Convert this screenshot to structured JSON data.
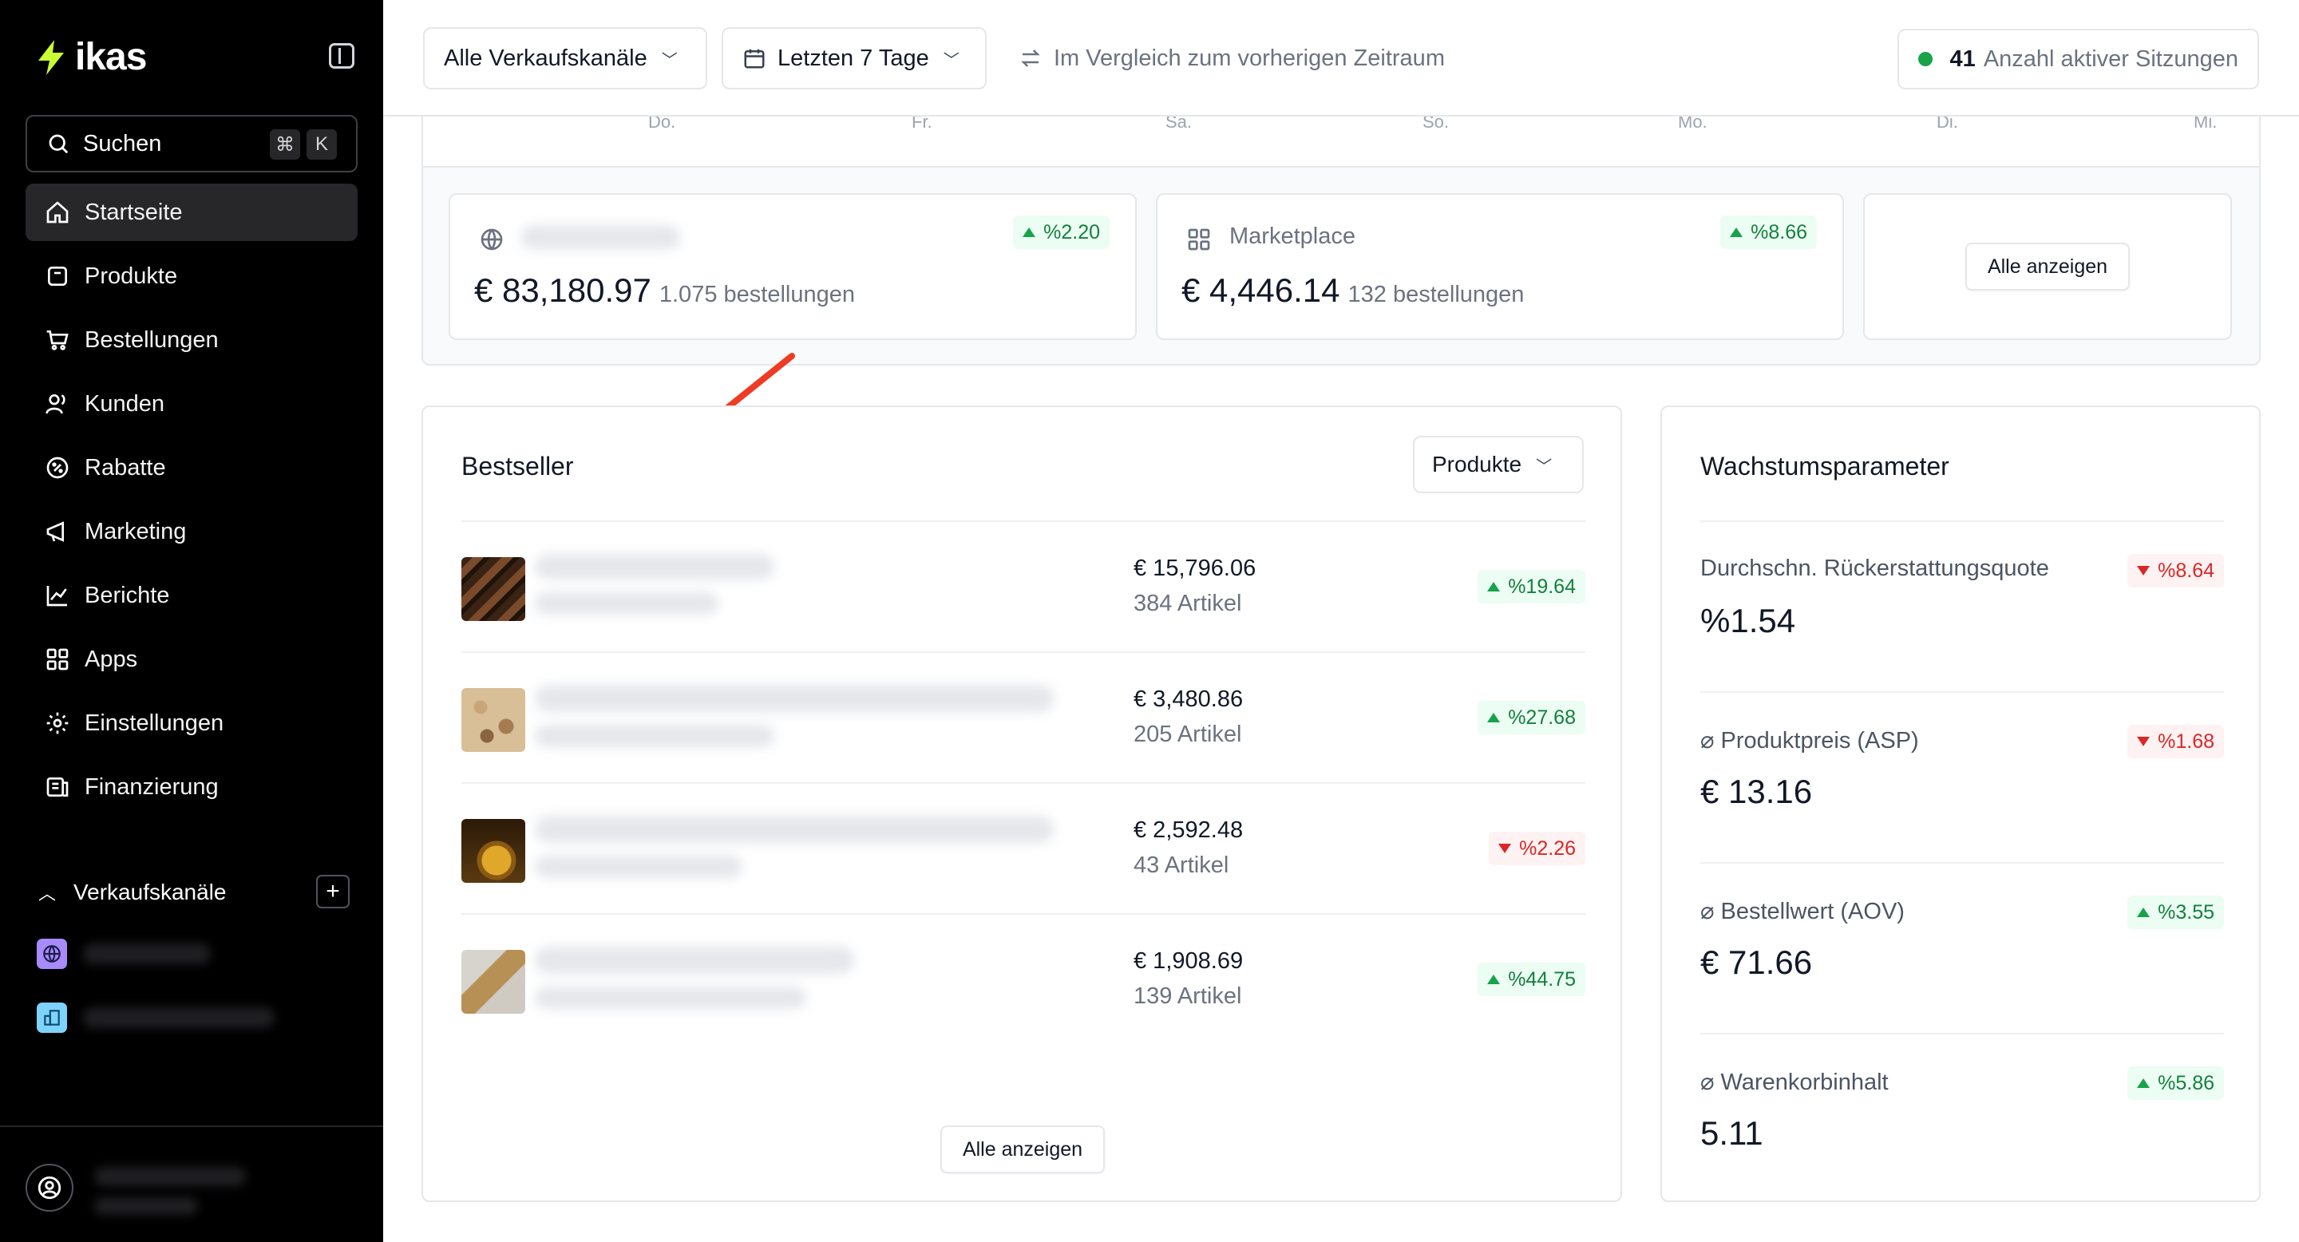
{
  "sidebar": {
    "logo": "ikas",
    "search": {
      "label": "Suchen",
      "kbd1": "⌘",
      "kbd2": "K"
    },
    "items": [
      {
        "label": "Startseite",
        "icon": "home-icon",
        "active": true
      },
      {
        "label": "Produkte",
        "icon": "package-icon"
      },
      {
        "label": "Bestellungen",
        "icon": "cart-icon"
      },
      {
        "label": "Kunden",
        "icon": "users-icon"
      },
      {
        "label": "Rabatte",
        "icon": "percent-icon"
      },
      {
        "label": "Marketing",
        "icon": "megaphone-icon"
      },
      {
        "label": "Berichte",
        "icon": "chart-icon"
      },
      {
        "label": "Apps",
        "icon": "grid-icon"
      },
      {
        "label": "Einstellungen",
        "icon": "gear-icon"
      },
      {
        "label": "Finanzierung",
        "icon": "bank-icon"
      }
    ],
    "sales_channels_label": "Verkaufskanäle"
  },
  "topbar": {
    "channel_select": "Alle Verkaufskanäle",
    "date_select": "Letzten 7 Tage",
    "compare": "Im Vergleich zum vorherigen Zeitraum",
    "sessions_count": "41",
    "sessions_label": "Anzahl aktiver Sitzungen"
  },
  "chart_axis_ticks": [
    "Do.",
    "Fr.",
    "Sa.",
    "So.",
    "Mo.",
    "Di.",
    "Mi."
  ],
  "channel_cards": [
    {
      "name": "",
      "icon": "globe-icon",
      "amount": "€ 83,180.97",
      "orders": "1.075 bestellungen",
      "change": "%2.20",
      "trend": "up"
    },
    {
      "name": "Marketplace",
      "icon": "grid-icon",
      "amount": "€ 4,446.14",
      "orders": "132 bestellungen",
      "change": "%8.66",
      "trend": "up"
    }
  ],
  "show_all_cards": "Alle anzeigen",
  "bestseller": {
    "title": "Bestseller",
    "filter": "Produkte",
    "rows": [
      {
        "price": "€ 15,796.06",
        "qty": "384 Artikel",
        "change": "%19.64",
        "trend": "up"
      },
      {
        "price": "€ 3,480.86",
        "qty": "205 Artikel",
        "change": "%27.68",
        "trend": "up"
      },
      {
        "price": "€ 2,592.48",
        "qty": "43 Artikel",
        "change": "%2.26",
        "trend": "down"
      },
      {
        "price": "€ 1,908.69",
        "qty": "139 Artikel",
        "change": "%44.75",
        "trend": "up"
      }
    ],
    "show_all": "Alle anzeigen"
  },
  "growth": {
    "title": "Wachstumsparameter",
    "metrics": [
      {
        "name": "Durchschn. Rückerstattungsquote",
        "value": "%1.54",
        "change": "%8.64",
        "trend": "down"
      },
      {
        "name": "⌀ Produktpreis (ASP)",
        "value": "€ 13.16",
        "change": "%1.68",
        "trend": "down"
      },
      {
        "name": "⌀ Bestellwert (AOV)",
        "value": "€ 71.66",
        "change": "%3.55",
        "trend": "up"
      },
      {
        "name": "⌀ Warenkorbinhalt",
        "value": "5.11",
        "change": "%5.86",
        "trend": "up"
      }
    ]
  },
  "colors": {
    "accent_green": "#16a34a",
    "down_red": "#dc2626",
    "logo_yellow": "#c8ff33",
    "arrow_red": "#ef3b24"
  }
}
